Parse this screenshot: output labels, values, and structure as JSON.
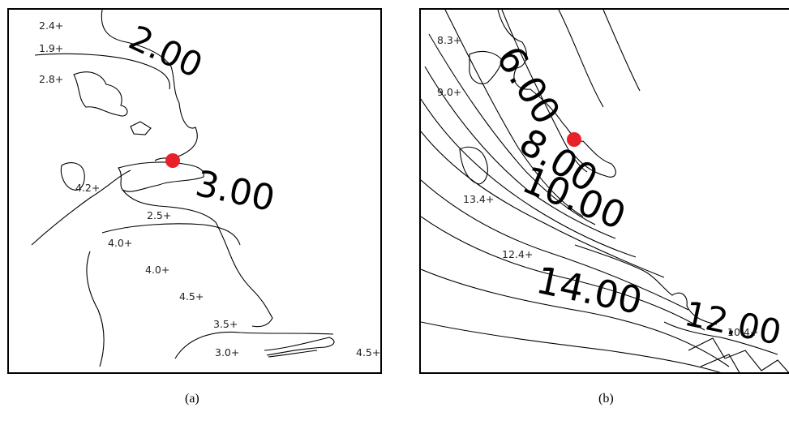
{
  "panels": [
    {
      "caption": "(a)",
      "contour_labels": [
        "2.00",
        "3.00"
      ],
      "soundings": [
        "2.4+",
        "1.9+",
        "2.8+",
        "4.2+",
        "2.5+",
        "4.0+",
        "4.0+",
        "4.5+",
        "3.5+",
        "3.0+",
        "4.5+"
      ],
      "marker_color": "#e8202a"
    },
    {
      "caption": "(b)",
      "contour_labels": [
        "6.00",
        "8.00",
        "10.00",
        "14.00",
        "12.00"
      ],
      "soundings": [
        "8.3+",
        "9.0+",
        "13.4+",
        "12.4+",
        "10.4+"
      ],
      "marker_color": "#e8202a"
    }
  ]
}
